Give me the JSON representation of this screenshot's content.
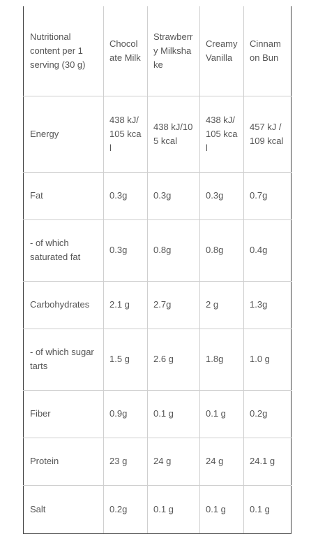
{
  "table": {
    "header": [
      "Nutritional content per 1 serving (30 g)",
      "Chocolate Milk",
      "Strawberry Milkshake",
      "Creamy Vanilla",
      "Cinnamon Bun"
    ],
    "rows": [
      {
        "label": "Energy",
        "values": [
          "438 kJ/105 kcal",
          "438 kJ/105 kcal",
          "438 kJ/105 kcal",
          "457 kJ / 109 kcal"
        ]
      },
      {
        "label": "Fat",
        "values": [
          "0.3g",
          "0.3g",
          "0.3g",
          "0.7g"
        ]
      },
      {
        "label": " - of which saturated fat",
        "values": [
          "0.3g",
          "0.8g",
          "0.8g",
          "0.4g"
        ]
      },
      {
        "label": "Carbohydrates",
        "values": [
          "2.1 g",
          "2.7g",
          "2 g",
          "1.3g"
        ]
      },
      {
        "label": " - of which sugar tarts",
        "values": [
          "1.5 g",
          "2.6 g",
          "1.8g",
          "1.0 g"
        ]
      },
      {
        "label": "Fiber",
        "values": [
          "0.9g",
          "0.1 g",
          "0.1 g",
          "0.2g"
        ]
      },
      {
        "label": "Protein",
        "values": [
          "23 g",
          "24 g",
          "24 g",
          "24.1 g"
        ]
      },
      {
        "label": "Salt",
        "values": [
          "0.2g",
          "0.1 g",
          "0.1 g",
          "0.1 g"
        ]
      }
    ]
  }
}
